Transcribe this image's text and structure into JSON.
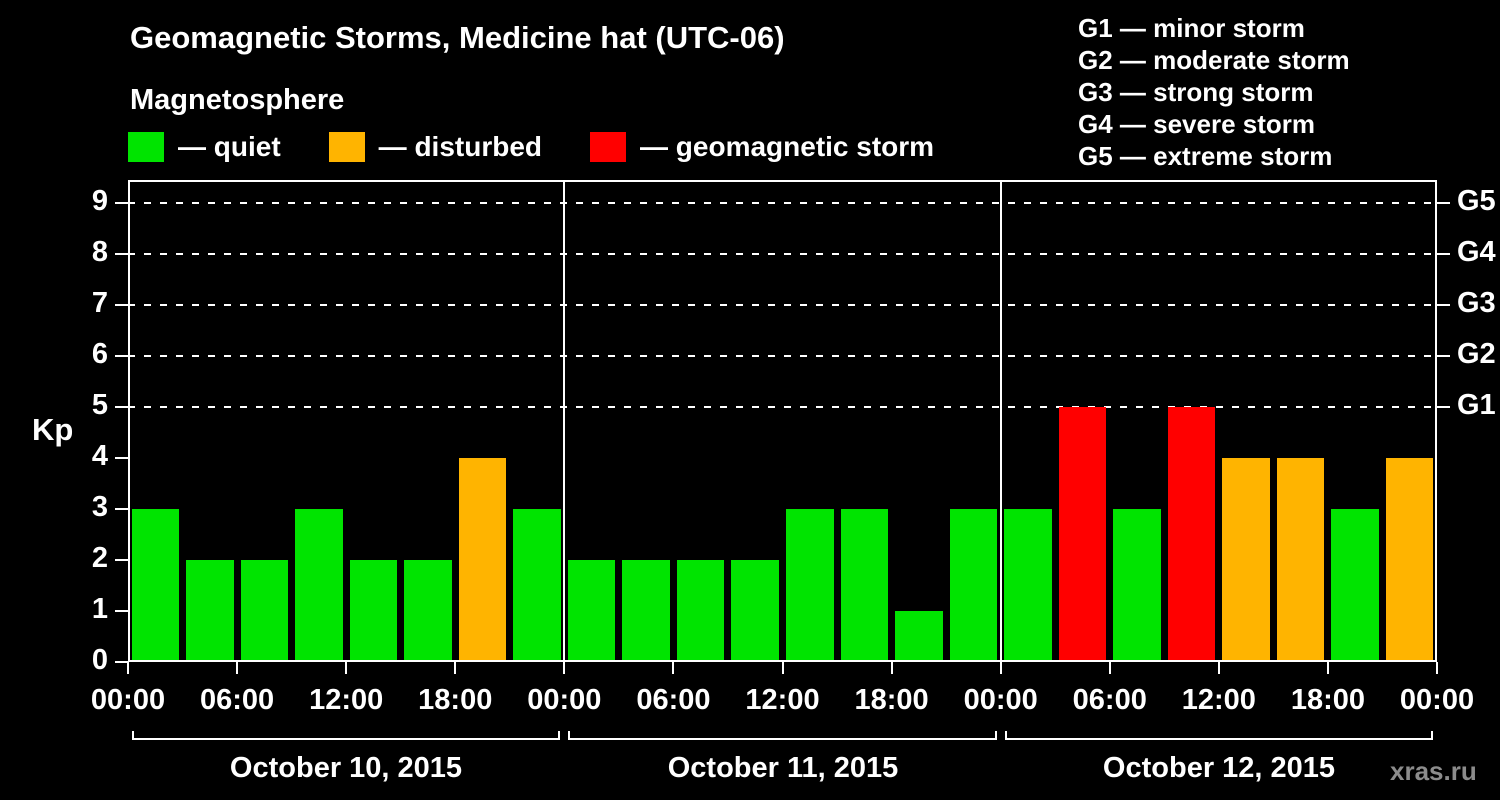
{
  "title": "Geomagnetic Storms, Medicine hat (UTC-06)",
  "subtitle": "Magnetosphere",
  "kp_axis_label": "Kp",
  "watermark": "xras.ru",
  "colors": {
    "quiet": "#00e400",
    "disturbed": "#ffb400",
    "storm": "#ff0000",
    "background": "#000000",
    "foreground": "#ffffff"
  },
  "legend": {
    "quiet_label": "— quiet",
    "disturbed_label": "— disturbed",
    "storm_label": "— geomagnetic storm"
  },
  "g_legend": {
    "lines": [
      "G1 — minor storm",
      "G2 — moderate storm",
      "G3 — strong storm",
      "G4 — severe storm",
      "G5 — extreme storm"
    ]
  },
  "chart_data": {
    "type": "bar",
    "title": "Geomagnetic Storms, Medicine hat (UTC-06)",
    "ylabel": "Kp",
    "ylim": [
      0,
      9.4
    ],
    "yticks": [
      0,
      1,
      2,
      3,
      4,
      5,
      6,
      7,
      8,
      9
    ],
    "grid_levels": [
      5,
      6,
      7,
      8,
      9
    ],
    "right_axis": [
      {
        "value": 5,
        "label": "G1"
      },
      {
        "value": 6,
        "label": "G2"
      },
      {
        "value": 7,
        "label": "G3"
      },
      {
        "value": 8,
        "label": "G4"
      },
      {
        "value": 9,
        "label": "G5"
      }
    ],
    "x_tick_labels": [
      "00:00",
      "06:00",
      "12:00",
      "18:00",
      "00:00",
      "06:00",
      "12:00",
      "18:00",
      "00:00",
      "06:00",
      "12:00",
      "18:00",
      "00:00"
    ],
    "bar_interval_hours": 3,
    "thresholds": {
      "disturbed_min": 4,
      "storm_min": 5
    },
    "days": [
      {
        "date": "October 10, 2015",
        "values": [
          3,
          2,
          2,
          3,
          2,
          2,
          4,
          3
        ]
      },
      {
        "date": "October 11, 2015",
        "values": [
          2,
          2,
          2,
          2,
          3,
          3,
          1,
          3
        ]
      },
      {
        "date": "October 12, 2015",
        "values": [
          3,
          5,
          3,
          5,
          4,
          4,
          3,
          4
        ]
      }
    ]
  }
}
